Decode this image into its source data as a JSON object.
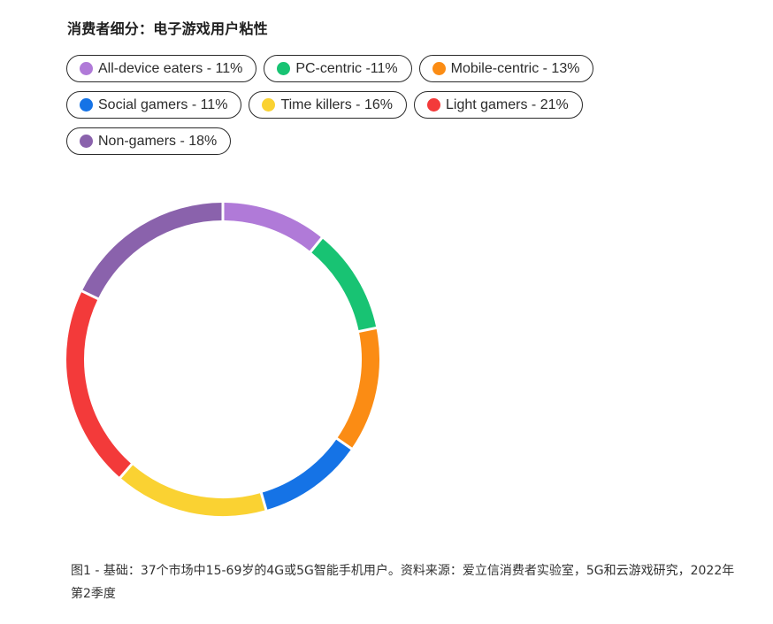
{
  "title": "消费者细分：电子游戏用户粘性",
  "legend": [
    {
      "label": "All-device eaters - 11%",
      "color": "#b07ad8"
    },
    {
      "label": "PC-centric -11%",
      "color": "#18c373"
    },
    {
      "label": "Mobile-centric - 13%",
      "color": "#fb8c14"
    },
    {
      "label": "Social gamers - 11%",
      "color": "#1573e6"
    },
    {
      "label": "Time killers - 16%",
      "color": "#fad232"
    },
    {
      "label": "Light gamers - 21%",
      "color": "#f33a3a"
    },
    {
      "label": "Non-gamers - 18%",
      "color": "#8a62ac"
    }
  ],
  "chart_data": {
    "type": "pie",
    "style": "donut",
    "categories": [
      "All-device eaters",
      "PC-centric",
      "Mobile-centric",
      "Social gamers",
      "Time killers",
      "Light gamers",
      "Non-gamers"
    ],
    "values": [
      11,
      11,
      13,
      11,
      16,
      21,
      18
    ],
    "unit": "%",
    "colors": [
      "#b07ad8",
      "#18c373",
      "#fb8c14",
      "#1573e6",
      "#fad232",
      "#f33a3a",
      "#8a62ac"
    ],
    "legend_position": "top"
  },
  "caption": "图1 - 基础：37个市场中15-69岁的4G或5G智能手机用户。资料来源：爱立信消费者实验室，5G和云游戏研究，2022年第2季度"
}
